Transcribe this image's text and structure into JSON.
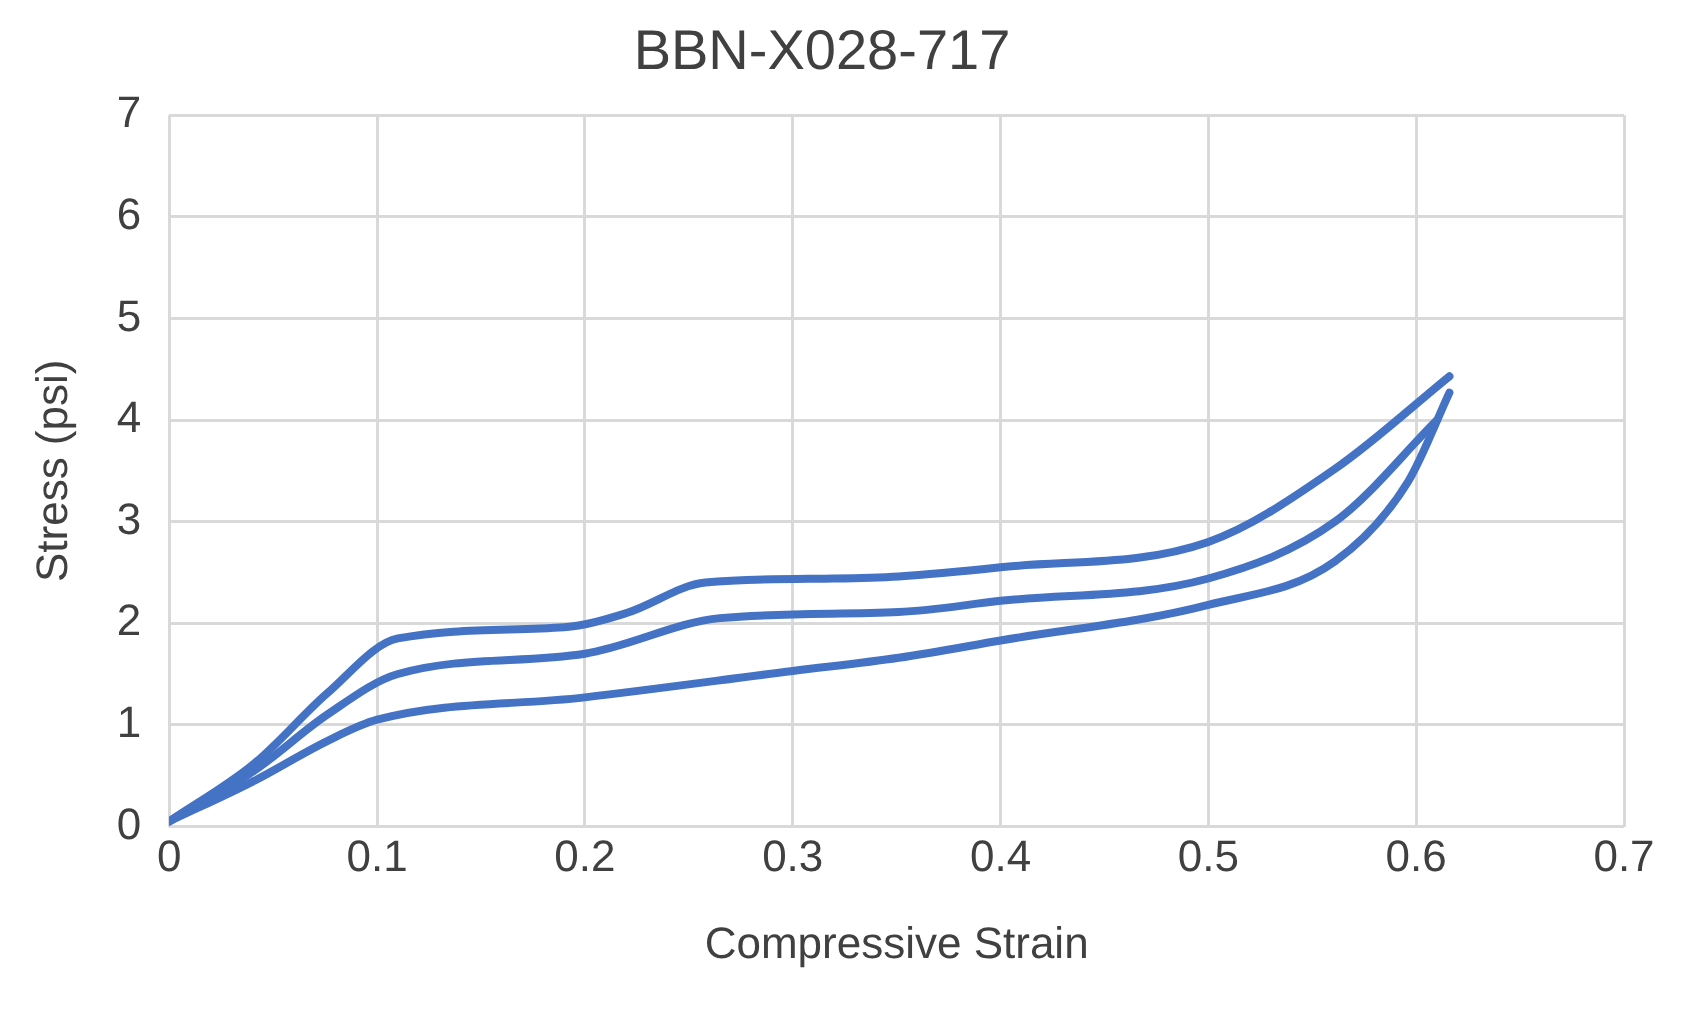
{
  "chart_data": {
    "type": "line",
    "title": "BBN-X028-717",
    "xlabel": "Compressive Strain",
    "ylabel": "Stress (psi)",
    "xlim": [
      0,
      0.7
    ],
    "xticks": [
      0,
      0.1,
      0.2,
      0.3,
      0.4,
      0.5,
      0.6,
      0.7
    ],
    "ylim": [
      0,
      7
    ],
    "yticks": [
      0,
      1,
      2,
      3,
      4,
      5,
      6,
      7
    ],
    "grid": true,
    "legend": false,
    "marker": "none",
    "line_style": "solid",
    "series": [
      {
        "color": "#4472c4",
        "x": [
          0,
          0.041,
          0.076,
          0.11,
          0.19,
          0.22,
          0.258,
          0.32,
          0.351,
          0.4,
          0.5,
          0.561,
          0.616
        ],
        "values": [
          0.05,
          0.62,
          1.31,
          1.85,
          1.96,
          2.1,
          2.4,
          2.44,
          2.46,
          2.55,
          2.8,
          3.52,
          4.43
        ]
      },
      {
        "color": "#4472c4",
        "x": [
          0,
          0.041,
          0.076,
          0.11,
          0.2,
          0.265,
          0.351,
          0.4,
          0.5,
          0.561,
          0.61
        ],
        "values": [
          0.05,
          0.55,
          1.1,
          1.5,
          1.7,
          2.05,
          2.11,
          2.22,
          2.44,
          3.0,
          4.0
        ]
      },
      {
        "color": "#4472c4",
        "x": [
          0,
          0.041,
          0.076,
          0.1,
          0.2,
          0.3,
          0.351,
          0.4,
          0.5,
          0.561,
          0.596,
          0.616
        ],
        "values": [
          0.05,
          0.45,
          0.84,
          1.05,
          1.27,
          1.53,
          1.66,
          1.83,
          2.18,
          2.61,
          3.39,
          4.27
        ]
      }
    ]
  }
}
